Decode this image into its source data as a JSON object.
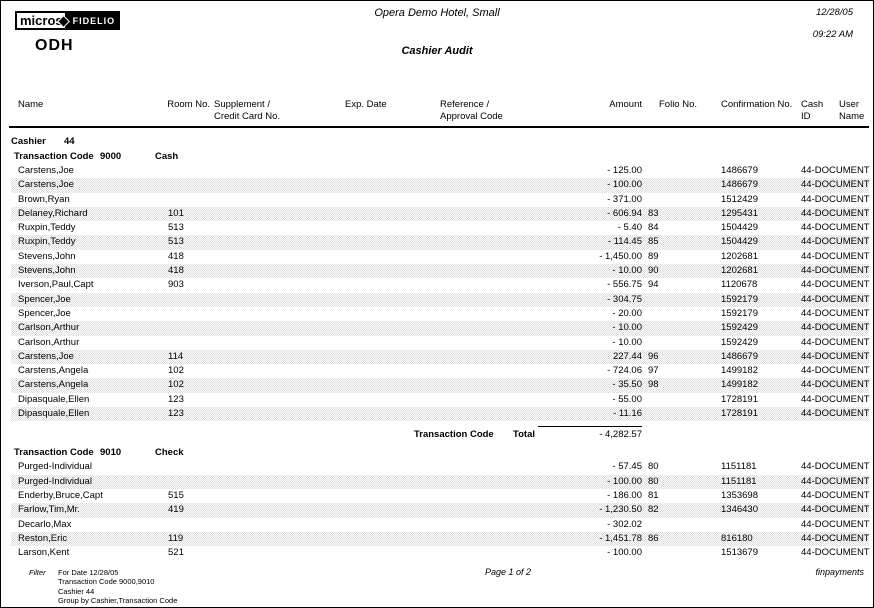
{
  "logo": {
    "micros": "micros",
    "fidelio": "FIDELIO",
    "brand": "ODH"
  },
  "header": {
    "hotel_name": "Opera Demo Hotel, Small",
    "report_title": "Cashier Audit",
    "date": "12/28/05",
    "time": "09:22 AM"
  },
  "columns": {
    "name": "Name",
    "room": "Room No.",
    "supplement_line1": "Supplement /",
    "supplement_line2": "Credit Card No.",
    "exp_date": "Exp. Date",
    "reference_line1": "Reference /",
    "reference_line2": "Approval Code",
    "amount": "Amount",
    "folio": "Folio No.",
    "confirmation": "Confirmation No.",
    "cash_id": "Cash ID",
    "user_name": "User Name"
  },
  "cashier": {
    "label": "Cashier",
    "number": "44"
  },
  "sections": [
    {
      "code_label": "Transaction Code",
      "code": "9000",
      "name": "Cash",
      "rows": [
        {
          "name": "Carstens,Joe",
          "room": "",
          "supplement": "",
          "exp": "",
          "reference": "",
          "amount": "- 125.00",
          "folio": "",
          "confirmation": "1486679",
          "user": "44-DOCUMENT"
        },
        {
          "name": "Carstens,Joe",
          "room": "",
          "supplement": "",
          "exp": "",
          "reference": "",
          "amount": "- 100.00",
          "folio": "",
          "confirmation": "1486679",
          "user": "44-DOCUMENT"
        },
        {
          "name": "Brown,Ryan",
          "room": "",
          "supplement": "",
          "exp": "",
          "reference": "",
          "amount": "- 371.00",
          "folio": "",
          "confirmation": "1512429",
          "user": "44-DOCUMENT"
        },
        {
          "name": "Delaney,Richard",
          "room": "101",
          "supplement": "",
          "exp": "",
          "reference": "",
          "amount": "- 606.94",
          "folio": "83",
          "confirmation": "1295431",
          "user": "44-DOCUMENT"
        },
        {
          "name": "Ruxpin,Teddy",
          "room": "513",
          "supplement": "",
          "exp": "",
          "reference": "",
          "amount": "- 5.40",
          "folio": "84",
          "confirmation": "1504429",
          "user": "44-DOCUMENT"
        },
        {
          "name": "Ruxpin,Teddy",
          "room": "513",
          "supplement": "",
          "exp": "",
          "reference": "",
          "amount": "- 114.45",
          "folio": "85",
          "confirmation": "1504429",
          "user": "44-DOCUMENT"
        },
        {
          "name": "Stevens,John",
          "room": "418",
          "supplement": "",
          "exp": "",
          "reference": "",
          "amount": "- 1,450.00",
          "folio": "89",
          "confirmation": "1202681",
          "user": "44-DOCUMENT"
        },
        {
          "name": "Stevens,John",
          "room": "418",
          "supplement": "",
          "exp": "",
          "reference": "",
          "amount": "- 10.00",
          "folio": "90",
          "confirmation": "1202681",
          "user": "44-DOCUMENT"
        },
        {
          "name": "Iverson,Paul,Capt",
          "room": "903",
          "supplement": "",
          "exp": "",
          "reference": "",
          "amount": "- 556.75",
          "folio": "94",
          "confirmation": "1120678",
          "user": "44-DOCUMENT"
        },
        {
          "name": "Spencer,Joe",
          "room": "",
          "supplement": "",
          "exp": "",
          "reference": "",
          "amount": "- 304.75",
          "folio": "",
          "confirmation": "1592179",
          "user": "44-DOCUMENT"
        },
        {
          "name": "Spencer,Joe",
          "room": "",
          "supplement": "",
          "exp": "",
          "reference": "",
          "amount": "- 20.00",
          "folio": "",
          "confirmation": "1592179",
          "user": "44-DOCUMENT"
        },
        {
          "name": "Carlson,Arthur",
          "room": "",
          "supplement": "",
          "exp": "",
          "reference": "",
          "amount": "- 10.00",
          "folio": "",
          "confirmation": "1592429",
          "user": "44-DOCUMENT"
        },
        {
          "name": "Carlson,Arthur",
          "room": "",
          "supplement": "",
          "exp": "",
          "reference": "",
          "amount": "- 10.00",
          "folio": "",
          "confirmation": "1592429",
          "user": "44-DOCUMENT"
        },
        {
          "name": "Carstens,Joe",
          "room": "114",
          "supplement": "",
          "exp": "",
          "reference": "",
          "amount": "227.44",
          "folio": "96",
          "confirmation": "1486679",
          "user": "44-DOCUMENT"
        },
        {
          "name": "Carstens,Angela",
          "room": "102",
          "supplement": "",
          "exp": "",
          "reference": "",
          "amount": "- 724.06",
          "folio": "97",
          "confirmation": "1499182",
          "user": "44-DOCUMENT"
        },
        {
          "name": "Carstens,Angela",
          "room": "102",
          "supplement": "",
          "exp": "",
          "reference": "",
          "amount": "- 35.50",
          "folio": "98",
          "confirmation": "1499182",
          "user": "44-DOCUMENT"
        },
        {
          "name": "Dipasquale,Ellen",
          "room": "123",
          "supplement": "",
          "exp": "",
          "reference": "",
          "amount": "- 55.00",
          "folio": "",
          "confirmation": "1728191",
          "user": "44-DOCUMENT"
        },
        {
          "name": "Dipasquale,Ellen",
          "room": "123",
          "supplement": "",
          "exp": "",
          "reference": "",
          "amount": "- 11.16",
          "folio": "",
          "confirmation": "1728191",
          "user": "44-DOCUMENT"
        }
      ],
      "total": {
        "label": "Transaction Code",
        "total_label": "Total",
        "amount": "- 4,282.57"
      }
    },
    {
      "code_label": "Transaction Code",
      "code": "9010",
      "name": "Check",
      "rows": [
        {
          "name": "Purged-Individual",
          "room": "",
          "supplement": "",
          "exp": "",
          "reference": "",
          "amount": "- 57.45",
          "folio": "80",
          "confirmation": "1151181",
          "user": "44-DOCUMENT"
        },
        {
          "name": "Purged-Individual",
          "room": "",
          "supplement": "",
          "exp": "",
          "reference": "",
          "amount": "- 100.00",
          "folio": "80",
          "confirmation": "1151181",
          "user": "44-DOCUMENT"
        },
        {
          "name": "Enderby,Bruce,Capt",
          "room": "515",
          "supplement": "",
          "exp": "",
          "reference": "",
          "amount": "- 186.00",
          "folio": "81",
          "confirmation": "1353698",
          "user": "44-DOCUMENT"
        },
        {
          "name": "Farlow,Tim,Mr.",
          "room": "419",
          "supplement": "",
          "exp": "",
          "reference": "",
          "amount": "- 1,230.50",
          "folio": "82",
          "confirmation": "1346430",
          "user": "44-DOCUMENT"
        },
        {
          "name": "Decarlo,Max",
          "room": "",
          "supplement": "",
          "exp": "",
          "reference": "",
          "amount": "- 302.02",
          "folio": "",
          "confirmation": "",
          "user": "44-DOCUMENT"
        },
        {
          "name": "Reston,Eric",
          "room": "119",
          "supplement": "",
          "exp": "",
          "reference": "",
          "amount": "- 1,451.78",
          "folio": "86",
          "confirmation": "816180",
          "user": "44-DOCUMENT"
        },
        {
          "name": "Larson,Kent",
          "room": "521",
          "supplement": "",
          "exp": "",
          "reference": "",
          "amount": "- 100.00",
          "folio": "",
          "confirmation": "1513679",
          "user": "44-DOCUMENT"
        }
      ]
    }
  ],
  "footer": {
    "filter_label": "Filter",
    "filter_lines": [
      "For Date 12/28/05",
      "Transaction Code 9000,9010",
      "Cashier 44",
      "Group by Cashier,Transaction Code"
    ],
    "page": "Page 1  of 2",
    "report_id": "finpayments"
  }
}
